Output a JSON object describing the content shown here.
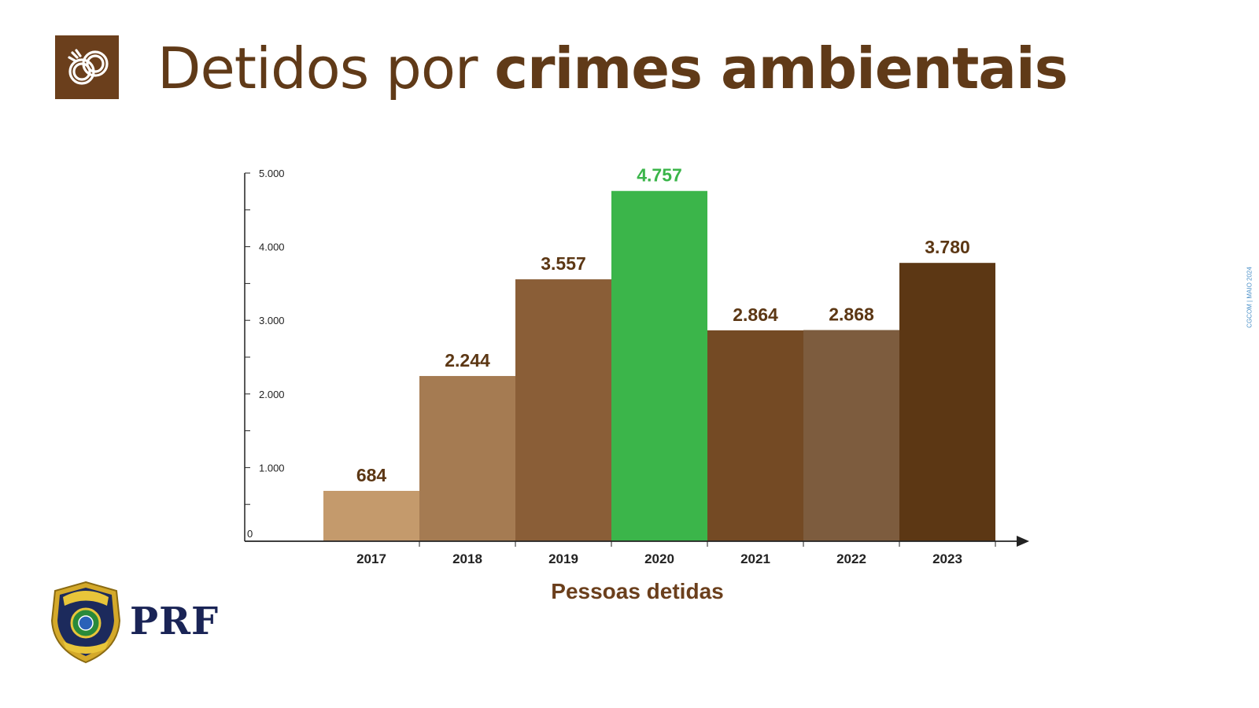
{
  "header": {
    "title_light": "Detidos por ",
    "title_bold": "crimes ambientais",
    "icon": "handcuffs-icon"
  },
  "chart_data": {
    "type": "bar",
    "title": "Detidos por crimes ambientais",
    "xlabel": "Pessoas detidas",
    "ylabel": "",
    "categories": [
      "2017",
      "2018",
      "2019",
      "2020",
      "2021",
      "2022",
      "2023"
    ],
    "values": [
      684,
      2244,
      3557,
      4757,
      2864,
      2868,
      3780
    ],
    "value_labels": [
      "684",
      "2.244",
      "3.557",
      "4.757",
      "2.864",
      "2.868",
      "3.780"
    ],
    "ylim": [
      0,
      5000
    ],
    "yticks": [
      0,
      1000,
      2000,
      3000,
      4000,
      5000
    ],
    "ytick_labels": [
      "0",
      "1.000",
      "2.000",
      "3.000",
      "4.000",
      "5.000"
    ],
    "bar_colors": [
      "#c49a6c",
      "#a57b52",
      "#8a5e37",
      "#3bb54a",
      "#744a24",
      "#7d5c3e",
      "#5c3714"
    ],
    "label_colors": [
      "#5c3714",
      "#5c3714",
      "#5c3714",
      "#3bb54a",
      "#5c3714",
      "#5c3714",
      "#5c3714"
    ],
    "highlight_category": "2020",
    "grid": false,
    "legend": "none"
  },
  "footer": {
    "logo_icon": "prf-badge-icon",
    "brand_text": "PRF",
    "credit": "CGCOM | MAIO 2024"
  },
  "colors": {
    "title": "#603a18",
    "accent_green": "#3bb54a",
    "brand_navy": "#1a2456"
  }
}
